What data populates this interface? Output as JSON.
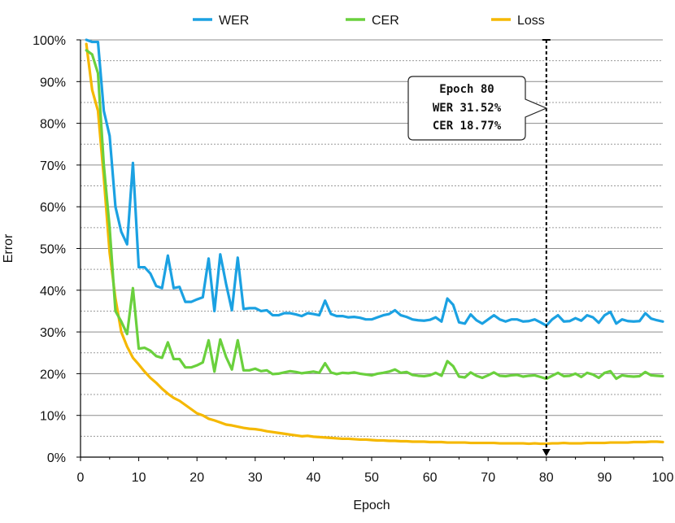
{
  "chart_data": {
    "type": "line",
    "title": "",
    "xlabel": "Epoch",
    "ylabel": "Error",
    "xlim": [
      0,
      100
    ],
    "ylim": [
      0,
      100
    ],
    "x_ticks": [
      0,
      10,
      20,
      30,
      40,
      50,
      60,
      70,
      80,
      90,
      100
    ],
    "y_ticks": [
      0,
      10,
      20,
      30,
      40,
      50,
      60,
      70,
      80,
      90,
      100
    ],
    "y_tick_labels": [
      "0%",
      "10%",
      "20%",
      "30%",
      "40%",
      "50%",
      "60%",
      "70%",
      "80%",
      "90%",
      "100%"
    ],
    "grid": true,
    "legend_position": "top",
    "series": [
      {
        "name": "WER",
        "color": "#1ba1e2",
        "x": [
          1,
          2,
          3,
          4,
          5,
          6,
          7,
          8,
          9,
          10,
          11,
          12,
          13,
          14,
          15,
          16,
          17,
          18,
          19,
          20,
          21,
          22,
          23,
          24,
          25,
          26,
          27,
          28,
          29,
          30,
          31,
          32,
          33,
          34,
          35,
          36,
          37,
          38,
          39,
          40,
          41,
          42,
          43,
          44,
          45,
          46,
          47,
          48,
          49,
          50,
          51,
          52,
          53,
          54,
          55,
          56,
          57,
          58,
          59,
          60,
          61,
          62,
          63,
          64,
          65,
          66,
          67,
          68,
          69,
          70,
          71,
          72,
          73,
          74,
          75,
          76,
          77,
          78,
          79,
          80,
          81,
          82,
          83,
          84,
          85,
          86,
          87,
          88,
          89,
          90,
          91,
          92,
          93,
          94,
          95,
          96,
          97,
          98,
          99,
          100
        ],
        "values": [
          100,
          99.5,
          99.5,
          83,
          77,
          60,
          54,
          51,
          70.5,
          45.5,
          45.5,
          44,
          41,
          40.5,
          48.3,
          40.5,
          40.8,
          37.2,
          37.2,
          37.8,
          38.3,
          47.6,
          35,
          48.6,
          41.5,
          35.2,
          47.8,
          35.5,
          35.7,
          35.7,
          35,
          35.2,
          34,
          34,
          34.5,
          34.5,
          34.2,
          33.8,
          34.5,
          34.3,
          34,
          37.5,
          34.3,
          33.8,
          33.8,
          33.5,
          33.6,
          33.4,
          33,
          33,
          33.5,
          34,
          34.3,
          35.2,
          34,
          33.6,
          33,
          32.8,
          32.7,
          32.9,
          33.5,
          32.5,
          38,
          36.5,
          32.3,
          32,
          34.2,
          32.8,
          32,
          33,
          34,
          33,
          32.5,
          33,
          33,
          32.5,
          32.6,
          33,
          32.3,
          31.52,
          33,
          34,
          32.5,
          32.6,
          33.3,
          32.7,
          34,
          33.5,
          32.2,
          34,
          34.8,
          32,
          33,
          32.6,
          32.5,
          32.6,
          34.5,
          33.2,
          32.8,
          32.5
        ]
      },
      {
        "name": "CER",
        "color": "#6ad03d",
        "x": [
          1,
          2,
          3,
          4,
          5,
          6,
          7,
          8,
          9,
          10,
          11,
          12,
          13,
          14,
          15,
          16,
          17,
          18,
          19,
          20,
          21,
          22,
          23,
          24,
          25,
          26,
          27,
          28,
          29,
          30,
          31,
          32,
          33,
          34,
          35,
          36,
          37,
          38,
          39,
          40,
          41,
          42,
          43,
          44,
          45,
          46,
          47,
          48,
          49,
          50,
          51,
          52,
          53,
          54,
          55,
          56,
          57,
          58,
          59,
          60,
          61,
          62,
          63,
          64,
          65,
          66,
          67,
          68,
          69,
          70,
          71,
          72,
          73,
          74,
          75,
          76,
          77,
          78,
          79,
          80,
          81,
          82,
          83,
          84,
          85,
          86,
          87,
          88,
          89,
          90,
          91,
          92,
          93,
          94,
          95,
          96,
          97,
          98,
          99,
          100
        ],
        "values": [
          97.5,
          96.5,
          92,
          70,
          55,
          35,
          32.5,
          29.5,
          40.5,
          26,
          26.2,
          25.5,
          24.2,
          23.8,
          27.5,
          23.5,
          23.5,
          21.5,
          21.5,
          22,
          22.7,
          28,
          20.5,
          28.2,
          24,
          21,
          28,
          20.8,
          20.8,
          21.2,
          20.6,
          20.8,
          19.9,
          20,
          20.3,
          20.6,
          20.4,
          20.1,
          20.3,
          20.5,
          20.2,
          22.5,
          20.3,
          19.9,
          20.2,
          20.1,
          20.3,
          20,
          19.8,
          19.6,
          20,
          20.2,
          20.5,
          21,
          20.2,
          20.4,
          19.7,
          19.5,
          19.4,
          19.6,
          20.2,
          19.5,
          23,
          21.8,
          19.3,
          19.1,
          20.3,
          19.5,
          19,
          19.6,
          20.3,
          19.5,
          19.4,
          19.6,
          19.7,
          19.3,
          19.5,
          19.6,
          19.2,
          18.77,
          19.5,
          20.2,
          19.4,
          19.5,
          20,
          19.2,
          20.2,
          19.8,
          19,
          20.2,
          20.6,
          18.8,
          19.6,
          19.4,
          19.3,
          19.4,
          20.4,
          19.6,
          19.5,
          19.4
        ]
      },
      {
        "name": "Loss",
        "color": "#f5b800",
        "x": [
          1,
          2,
          3,
          4,
          5,
          6,
          7,
          8,
          9,
          10,
          11,
          12,
          13,
          14,
          15,
          16,
          17,
          18,
          19,
          20,
          21,
          22,
          23,
          24,
          25,
          26,
          27,
          28,
          29,
          30,
          31,
          32,
          33,
          34,
          35,
          36,
          37,
          38,
          39,
          40,
          41,
          42,
          43,
          44,
          45,
          46,
          47,
          48,
          49,
          50,
          51,
          52,
          53,
          54,
          55,
          56,
          57,
          58,
          59,
          60,
          61,
          62,
          63,
          64,
          65,
          66,
          67,
          68,
          69,
          70,
          71,
          72,
          73,
          74,
          75,
          76,
          77,
          78,
          79,
          80,
          81,
          82,
          83,
          84,
          85,
          86,
          87,
          88,
          89,
          90,
          91,
          92,
          93,
          94,
          95,
          96,
          97,
          98,
          99,
          100
        ],
        "values": [
          99,
          88,
          83,
          67,
          49,
          38,
          30,
          26.5,
          23.8,
          22.2,
          20.5,
          19,
          17.8,
          16.4,
          15.2,
          14.2,
          13.5,
          12.5,
          11.5,
          10.5,
          10,
          9.2,
          8.8,
          8.3,
          7.8,
          7.6,
          7.3,
          7,
          6.8,
          6.7,
          6.5,
          6.2,
          6,
          5.8,
          5.6,
          5.4,
          5.2,
          5,
          5.1,
          4.9,
          4.8,
          4.7,
          4.6,
          4.5,
          4.4,
          4.4,
          4.3,
          4.2,
          4.2,
          4.1,
          4,
          4,
          3.9,
          3.9,
          3.8,
          3.8,
          3.7,
          3.7,
          3.7,
          3.6,
          3.6,
          3.6,
          3.5,
          3.5,
          3.5,
          3.5,
          3.4,
          3.4,
          3.4,
          3.4,
          3.4,
          3.3,
          3.3,
          3.3,
          3.3,
          3.3,
          3.2,
          3.3,
          3.2,
          3.2,
          3.3,
          3.3,
          3.4,
          3.3,
          3.3,
          3.3,
          3.4,
          3.4,
          3.4,
          3.4,
          3.5,
          3.5,
          3.5,
          3.5,
          3.6,
          3.6,
          3.6,
          3.7,
          3.7,
          3.6
        ]
      }
    ],
    "annotation": {
      "epoch_x": 80,
      "lines": [
        "Epoch 80",
        "WER 31.52%",
        "CER 18.77%"
      ]
    }
  }
}
